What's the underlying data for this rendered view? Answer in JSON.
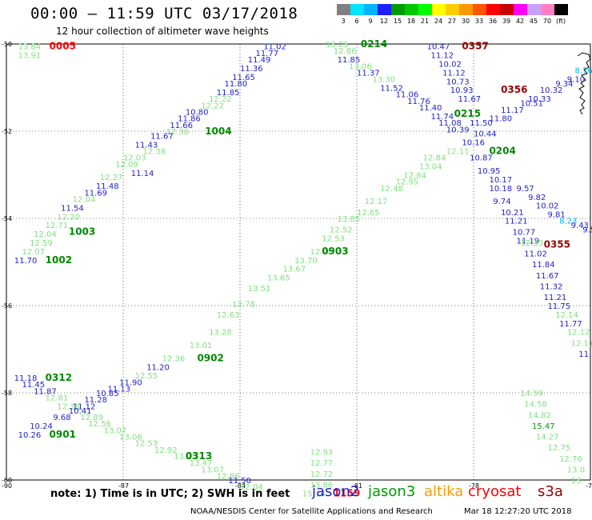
{
  "header": {
    "title": "00:00 – 11:59 UTC 03/17/2018",
    "subtitle": "12 hour collection of altimeter wave heights"
  },
  "colorbar": {
    "colors": [
      "#808080",
      "#00e5ff",
      "#00b4ff",
      "#1e1eff",
      "#009b00",
      "#00c800",
      "#00ff00",
      "#ffff00",
      "#ffcc00",
      "#ff9900",
      "#ff5500",
      "#ff0000",
      "#c80000",
      "#ff00ff",
      "#c8a0ff",
      "#ff80c0",
      "#000000"
    ],
    "labels": [
      "3",
      "6",
      "9",
      "12",
      "15",
      "18",
      "21",
      "24",
      "27",
      "30",
      "33",
      "36",
      "39",
      "42",
      "45",
      "70",
      "(ft)"
    ]
  },
  "map": {
    "lat_ticks": [
      "-50",
      "-52",
      "-54",
      "-56",
      "-58",
      "-60"
    ],
    "lon_ticks": [
      "-90",
      "-87",
      "-84",
      "-81",
      "-78",
      "-75"
    ]
  },
  "observations": [
    {
      "t": "13.84",
      "lon": -89.7,
      "lat": -50.05,
      "c": "#80e080"
    },
    {
      "t": "13.91",
      "lon": -89.7,
      "lat": -50.25,
      "c": "#80e080"
    },
    {
      "t": "0005",
      "lon": -88.9,
      "lat": -50.05,
      "c": "#ff0000"
    },
    {
      "t": "11.02",
      "lon": -83.4,
      "lat": -50.05,
      "c": "#1e1ecc"
    },
    {
      "t": "11.77",
      "lon": -83.6,
      "lat": -50.2,
      "c": "#1e1ecc"
    },
    {
      "t": "11.49",
      "lon": -83.8,
      "lat": -50.35,
      "c": "#1e1ecc"
    },
    {
      "t": "11.36",
      "lon": -84.0,
      "lat": -50.55,
      "c": "#1e1ecc"
    },
    {
      "t": "11.65",
      "lon": -84.2,
      "lat": -50.75,
      "c": "#1e1ecc"
    },
    {
      "t": "11.80",
      "lon": -84.4,
      "lat": -50.9,
      "c": "#1e1ecc"
    },
    {
      "t": "11.85",
      "lon": -84.6,
      "lat": -51.1,
      "c": "#1e1ecc"
    },
    {
      "t": "12.22",
      "lon": -84.8,
      "lat": -51.25,
      "c": "#80e080"
    },
    {
      "t": "12.22",
      "lon": -85.0,
      "lat": -51.4,
      "c": "#80e080"
    },
    {
      "t": "10.80",
      "lon": -85.4,
      "lat": -51.55,
      "c": "#1e1ecc"
    },
    {
      "t": "11.86",
      "lon": -85.6,
      "lat": -51.7,
      "c": "#1e1ecc"
    },
    {
      "t": "11.66",
      "lon": -85.8,
      "lat": -51.85,
      "c": "#1e1ecc"
    },
    {
      "t": "12.36",
      "lon": -85.9,
      "lat": -52.0,
      "c": "#80e080"
    },
    {
      "t": "1004",
      "lon": -84.9,
      "lat": -52.0,
      "c": "#008800"
    },
    {
      "t": "11.67",
      "lon": -86.3,
      "lat": -52.1,
      "c": "#1e1ecc"
    },
    {
      "t": "11.43",
      "lon": -86.7,
      "lat": -52.3,
      "c": "#1e1ecc"
    },
    {
      "t": "12.38",
      "lon": -86.5,
      "lat": -52.45,
      "c": "#80e080"
    },
    {
      "t": "12.03",
      "lon": -87.0,
      "lat": -52.6,
      "c": "#80e080"
    },
    {
      "t": "12.09",
      "lon": -87.2,
      "lat": -52.75,
      "c": "#80e080"
    },
    {
      "t": "11.14",
      "lon": -86.8,
      "lat": -52.95,
      "c": "#1e1ecc"
    },
    {
      "t": "12.27",
      "lon": -87.6,
      "lat": -53.05,
      "c": "#80e080"
    },
    {
      "t": "11.48",
      "lon": -87.7,
      "lat": -53.25,
      "c": "#1e1ecc"
    },
    {
      "t": "11.69",
      "lon": -88.0,
      "lat": -53.4,
      "c": "#1e1ecc"
    },
    {
      "t": "12.04",
      "lon": -88.3,
      "lat": -53.55,
      "c": "#80e080"
    },
    {
      "t": "11.54",
      "lon": -88.6,
      "lat": -53.75,
      "c": "#1e1ecc"
    },
    {
      "t": "12.20",
      "lon": -88.7,
      "lat": -53.95,
      "c": "#80e080"
    },
    {
      "t": "12.71",
      "lon": -89.0,
      "lat": -54.15,
      "c": "#80e080"
    },
    {
      "t": "1003",
      "lon": -88.4,
      "lat": -54.3,
      "c": "#008800"
    },
    {
      "t": "12.04",
      "lon": -89.3,
      "lat": -54.35,
      "c": "#80e080"
    },
    {
      "t": "12.59",
      "lon": -89.4,
      "lat": -54.55,
      "c": "#80e080"
    },
    {
      "t": "12.07",
      "lon": -89.6,
      "lat": -54.75,
      "c": "#80e080"
    },
    {
      "t": "11.70",
      "lon": -89.8,
      "lat": -54.95,
      "c": "#1e1ecc"
    },
    {
      "t": "1002",
      "lon": -89.0,
      "lat": -54.95,
      "c": "#008800"
    },
    {
      "t": "13.25",
      "lon": -81.8,
      "lat": -50.0,
      "c": "#80e080"
    },
    {
      "t": "0214",
      "lon": -80.9,
      "lat": -50.0,
      "c": "#008800"
    },
    {
      "t": "12.86",
      "lon": -81.6,
      "lat": -50.15,
      "c": "#80e080"
    },
    {
      "t": "11.85",
      "lon": -81.5,
      "lat": -50.35,
      "c": "#1e1ecc"
    },
    {
      "t": "13.06",
      "lon": -81.2,
      "lat": -50.5,
      "c": "#80e080"
    },
    {
      "t": "11.37",
      "lon": -81.0,
      "lat": -50.65,
      "c": "#1e1ecc"
    },
    {
      "t": "13.30",
      "lon": -80.6,
      "lat": -50.8,
      "c": "#80e080"
    },
    {
      "t": "11.52",
      "lon": -80.4,
      "lat": -51.0,
      "c": "#1e1ecc"
    },
    {
      "t": "11.06",
      "lon": -80.0,
      "lat": -51.15,
      "c": "#1e1ecc"
    },
    {
      "t": "11.76",
      "lon": -79.7,
      "lat": -51.3,
      "c": "#1e1ecc"
    },
    {
      "t": "11.40",
      "lon": -79.4,
      "lat": -51.45,
      "c": "#1e1ecc"
    },
    {
      "t": "11.74",
      "lon": -79.1,
      "lat": -51.65,
      "c": "#1e1ecc"
    },
    {
      "t": "11.08",
      "lon": -78.9,
      "lat": -51.8,
      "c": "#1e1ecc"
    },
    {
      "t": "10.39",
      "lon": -78.7,
      "lat": -51.95,
      "c": "#1e1ecc"
    },
    {
      "t": "10.47",
      "lon": -79.2,
      "lat": -50.05,
      "c": "#1e1ecc"
    },
    {
      "t": "0357",
      "lon": -78.3,
      "lat": -50.05,
      "c": "#990000"
    },
    {
      "t": "11.12",
      "lon": -79.1,
      "lat": -50.25,
      "c": "#1e1ecc"
    },
    {
      "t": "10.02",
      "lon": -78.9,
      "lat": -50.45,
      "c": "#1e1ecc"
    },
    {
      "t": "11.12",
      "lon": -78.8,
      "lat": -50.65,
      "c": "#1e1ecc"
    },
    {
      "t": "10.73",
      "lon": -78.7,
      "lat": -50.85,
      "c": "#1e1ecc"
    },
    {
      "t": "10.93",
      "lon": -78.6,
      "lat": -51.05,
      "c": "#1e1ecc"
    },
    {
      "t": "0356",
      "lon": -77.3,
      "lat": -51.05,
      "c": "#990000"
    },
    {
      "t": "11.67",
      "lon": -78.4,
      "lat": -51.25,
      "c": "#1e1ecc"
    },
    {
      "t": "10.51",
      "lon": -76.8,
      "lat": -51.35,
      "c": "#1e1ecc"
    },
    {
      "t": "11.17",
      "lon": -77.3,
      "lat": -51.5,
      "c": "#1e1ecc"
    },
    {
      "t": "0215",
      "lon": -78.5,
      "lat": -51.6,
      "c": "#008800"
    },
    {
      "t": "11.50",
      "lon": -78.1,
      "lat": -51.8,
      "c": "#1e1ecc"
    },
    {
      "t": "10.44",
      "lon": -78.0,
      "lat": -52.05,
      "c": "#1e1ecc"
    },
    {
      "t": "10.16",
      "lon": -78.3,
      "lat": -52.25,
      "c": "#1e1ecc"
    },
    {
      "t": "0204",
      "lon": -77.6,
      "lat": -52.45,
      "c": "#008800"
    },
    {
      "t": "12.11",
      "lon": -78.7,
      "lat": -52.45,
      "c": "#80e080"
    },
    {
      "t": "10.87",
      "lon": -78.1,
      "lat": -52.6,
      "c": "#1e1ecc"
    },
    {
      "t": "13.04",
      "lon": -79.4,
      "lat": -52.8,
      "c": "#80e080"
    },
    {
      "t": "10.95",
      "lon": -77.9,
      "lat": -52.9,
      "c": "#1e1ecc"
    },
    {
      "t": "10.17",
      "lon": -77.6,
      "lat": -53.1,
      "c": "#1e1ecc"
    },
    {
      "t": "10.18",
      "lon": -77.6,
      "lat": -53.3,
      "c": "#1e1ecc"
    },
    {
      "t": "9.57",
      "lon": -76.9,
      "lat": -53.3,
      "c": "#1e1ecc"
    },
    {
      "t": "9.82",
      "lon": -76.6,
      "lat": -53.5,
      "c": "#1e1ecc"
    },
    {
      "t": "9.74",
      "lon": -77.5,
      "lat": -53.6,
      "c": "#1e1ecc"
    },
    {
      "t": "10.02",
      "lon": -76.4,
      "lat": -53.7,
      "c": "#1e1ecc"
    },
    {
      "t": "10.21",
      "lon": -77.3,
      "lat": -53.85,
      "c": "#1e1ecc"
    },
    {
      "t": "9.81",
      "lon": -76.1,
      "lat": -53.9,
      "c": "#1e1ecc"
    },
    {
      "t": "8.23",
      "lon": -75.8,
      "lat": -54.05,
      "c": "#00b4ff"
    },
    {
      "t": "11.21",
      "lon": -77.2,
      "lat": -54.05,
      "c": "#1e1ecc"
    },
    {
      "t": "9.43",
      "lon": -75.5,
      "lat": -54.15,
      "c": "#1e1ecc"
    },
    {
      "t": "9.59",
      "lon": -75.2,
      "lat": -54.25,
      "c": "#1e1ecc"
    },
    {
      "t": "10.77",
      "lon": -77.0,
      "lat": -54.3,
      "c": "#1e1ecc"
    },
    {
      "t": "11.19",
      "lon": -76.9,
      "lat": -54.5,
      "c": "#1e1ecc"
    },
    {
      "t": "0355",
      "lon": -76.2,
      "lat": -54.6,
      "c": "#990000"
    },
    {
      "t": "12.33",
      "lon": -76.8,
      "lat": -54.55,
      "c": "#80e080"
    },
    {
      "t": "11.02",
      "lon": -76.7,
      "lat": -54.8,
      "c": "#1e1ecc"
    },
    {
      "t": "11.84",
      "lon": -76.5,
      "lat": -55.05,
      "c": "#1e1ecc"
    },
    {
      "t": "11.67",
      "lon": -76.4,
      "lat": -55.3,
      "c": "#1e1ecc"
    },
    {
      "t": "11.32",
      "lon": -76.3,
      "lat": -55.55,
      "c": "#1e1ecc"
    },
    {
      "t": "11.21",
      "lon": -76.2,
      "lat": -55.8,
      "c": "#1e1ecc"
    },
    {
      "t": "11.75",
      "lon": -76.1,
      "lat": -56.0,
      "c": "#1e1ecc"
    },
    {
      "t": "12.14",
      "lon": -75.9,
      "lat": -56.2,
      "c": "#80e080"
    },
    {
      "t": "11.77",
      "lon": -75.8,
      "lat": -56.4,
      "c": "#1e1ecc"
    },
    {
      "t": "12.12",
      "lon": -75.6,
      "lat": -56.6,
      "c": "#80e080"
    },
    {
      "t": "12.11",
      "lon": -75.5,
      "lat": -56.85,
      "c": "#80e080"
    },
    {
      "t": "11.18",
      "lon": -75.3,
      "lat": -57.1,
      "c": "#1e1ecc"
    },
    {
      "t": "9.10",
      "lon": -75.6,
      "lat": -50.8,
      "c": "#1e1ecc"
    },
    {
      "t": "9.34",
      "lon": -75.9,
      "lat": -50.9,
      "c": "#1e1ecc"
    },
    {
      "t": "8.76",
      "lon": -75.4,
      "lat": -50.6,
      "c": "#00b4ff"
    },
    {
      "t": "10.32",
      "lon": -76.3,
      "lat": -51.05,
      "c": "#1e1ecc"
    },
    {
      "t": "10.33",
      "lon": -76.6,
      "lat": -51.25,
      "c": "#1e1ecc"
    },
    {
      "t": "11.80",
      "lon": -77.6,
      "lat": -51.7,
      "c": "#1e1ecc"
    },
    {
      "t": "12.84",
      "lon": -79.3,
      "lat": -52.6,
      "c": "#80e080"
    },
    {
      "t": "12.84",
      "lon": -79.8,
      "lat": -53.0,
      "c": "#80e080"
    },
    {
      "t": "12.48",
      "lon": -80.4,
      "lat": -53.3,
      "c": "#80e080"
    },
    {
      "t": "12.95",
      "lon": -80.0,
      "lat": -53.15,
      "c": "#80e080"
    },
    {
      "t": "12.17",
      "lon": -80.8,
      "lat": -53.6,
      "c": "#80e080"
    },
    {
      "t": "12.65",
      "lon": -81.0,
      "lat": -53.85,
      "c": "#80e080"
    },
    {
      "t": "13.85",
      "lon": -81.5,
      "lat": -54.0,
      "c": "#80e080"
    },
    {
      "t": "12.52",
      "lon": -81.7,
      "lat": -54.25,
      "c": "#80e080"
    },
    {
      "t": "12.53",
      "lon": -81.9,
      "lat": -54.45,
      "c": "#80e080"
    },
    {
      "t": "12.48",
      "lon": -82.2,
      "lat": -54.75,
      "c": "#80e080"
    },
    {
      "t": "0903",
      "lon": -81.9,
      "lat": -54.75,
      "c": "#008800"
    },
    {
      "t": "13.70",
      "lon": -82.6,
      "lat": -54.95,
      "c": "#80e080"
    },
    {
      "t": "13.67",
      "lon": -82.9,
      "lat": -55.15,
      "c": "#80e080"
    },
    {
      "t": "13.65",
      "lon": -83.3,
      "lat": -55.35,
      "c": "#80e080"
    },
    {
      "t": "13.51",
      "lon": -83.8,
      "lat": -55.6,
      "c": "#80e080"
    },
    {
      "t": "12.78",
      "lon": -84.2,
      "lat": -55.95,
      "c": "#80e080"
    },
    {
      "t": "12.63",
      "lon": -84.6,
      "lat": -56.2,
      "c": "#80e080"
    },
    {
      "t": "13.28",
      "lon": -84.8,
      "lat": -56.6,
      "c": "#80e080"
    },
    {
      "t": "13.01",
      "lon": -85.3,
      "lat": -56.9,
      "c": "#80e080"
    },
    {
      "t": "0902",
      "lon": -85.1,
      "lat": -57.2,
      "c": "#008800"
    },
    {
      "t": "12.36",
      "lon": -86.0,
      "lat": -57.2,
      "c": "#80e080"
    },
    {
      "t": "11.20",
      "lon": -86.4,
      "lat": -57.4,
      "c": "#1e1ecc"
    },
    {
      "t": "12.55",
      "lon": -86.7,
      "lat": -57.6,
      "c": "#80e080"
    },
    {
      "t": "11.90",
      "lon": -87.1,
      "lat": -57.75,
      "c": "#1e1ecc"
    },
    {
      "t": "11.13",
      "lon": -87.4,
      "lat": -57.9,
      "c": "#1e1ecc"
    },
    {
      "t": "10.85",
      "lon": -87.7,
      "lat": -58.0,
      "c": "#1e1ecc"
    },
    {
      "t": "11.28",
      "lon": -88.0,
      "lat": -58.15,
      "c": "#1e1ecc"
    },
    {
      "t": "11.12",
      "lon": -88.3,
      "lat": -58.3,
      "c": "#1e1ecc"
    },
    {
      "t": "11.18",
      "lon": -89.8,
      "lat": -57.65,
      "c": "#1e1ecc"
    },
    {
      "t": "0312",
      "lon": -89.0,
      "lat": -57.65,
      "c": "#008800"
    },
    {
      "t": "11.45",
      "lon": -89.6,
      "lat": -57.8,
      "c": "#1e1ecc"
    },
    {
      "t": "11.87",
      "lon": -89.3,
      "lat": -57.95,
      "c": "#1e1ecc"
    },
    {
      "t": "12.81",
      "lon": -89.0,
      "lat": -58.1,
      "c": "#80e080"
    },
    {
      "t": "12.36",
      "lon": -88.7,
      "lat": -58.3,
      "c": "#80e080"
    },
    {
      "t": "10.41",
      "lon": -88.4,
      "lat": -58.4,
      "c": "#1e1ecc"
    },
    {
      "t": "9.68",
      "lon": -88.8,
      "lat": -58.55,
      "c": "#1e1ecc"
    },
    {
      "t": "12.89",
      "lon": -88.1,
      "lat": -58.55,
      "c": "#80e080"
    },
    {
      "t": "12.56",
      "lon": -87.9,
      "lat": -58.7,
      "c": "#80e080"
    },
    {
      "t": "10.24",
      "lon": -89.4,
      "lat": -58.75,
      "c": "#1e1ecc"
    },
    {
      "t": "13.07",
      "lon": -87.5,
      "lat": -58.85,
      "c": "#80e080"
    },
    {
      "t": "10.26",
      "lon": -89.7,
      "lat": -58.95,
      "c": "#1e1ecc"
    },
    {
      "t": "0901",
      "lon": -88.9,
      "lat": -58.95,
      "c": "#008800"
    },
    {
      "t": "13.06",
      "lon": -87.1,
      "lat": -59.0,
      "c": "#80e080"
    },
    {
      "t": "12.53",
      "lon": -86.7,
      "lat": -59.15,
      "c": "#80e080"
    },
    {
      "t": "12.92",
      "lon": -86.2,
      "lat": -59.3,
      "c": "#80e080"
    },
    {
      "t": "13.25",
      "lon": -85.7,
      "lat": -59.45,
      "c": "#80e080"
    },
    {
      "t": "0313",
      "lon": -85.4,
      "lat": -59.45,
      "c": "#008800"
    },
    {
      "t": "13.47",
      "lon": -85.3,
      "lat": -59.6,
      "c": "#80e080"
    },
    {
      "t": "13.07",
      "lon": -85.0,
      "lat": -59.75,
      "c": "#80e080"
    },
    {
      "t": "12.86",
      "lon": -84.6,
      "lat": -59.9,
      "c": "#80e080"
    },
    {
      "t": "11.50",
      "lon": -84.3,
      "lat": -60.0,
      "c": "#1e1ecc"
    },
    {
      "t": "12.04",
      "lon": -84.0,
      "lat": -60.15,
      "c": "#80e080"
    },
    {
      "t": "12.93",
      "lon": -82.2,
      "lat": -59.35,
      "c": "#80e080"
    },
    {
      "t": "12.77",
      "lon": -82.2,
      "lat": -59.6,
      "c": "#80e080"
    },
    {
      "t": "12.72",
      "lon": -82.2,
      "lat": -59.85,
      "c": "#80e080"
    },
    {
      "t": "13.86",
      "lon": -82.2,
      "lat": -60.1,
      "c": "#80e080"
    },
    {
      "t": "15.16",
      "lon": -82.4,
      "lat": -60.3,
      "c": "#80e080"
    },
    {
      "t": "1159",
      "lon": -81.6,
      "lat": -60.3,
      "c": "#ff0000"
    },
    {
      "t": "14.59",
      "lon": -76.8,
      "lat": -58.0,
      "c": "#80e080"
    },
    {
      "t": "14.58",
      "lon": -76.7,
      "lat": -58.25,
      "c": "#80e080"
    },
    {
      "t": "14.82",
      "lon": -76.6,
      "lat": -58.5,
      "c": "#80e080"
    },
    {
      "t": "15.47",
      "lon": -76.5,
      "lat": -58.75,
      "c": "#009b00"
    },
    {
      "t": "14.27",
      "lon": -76.4,
      "lat": -59.0,
      "c": "#80e080"
    },
    {
      "t": "12.75",
      "lon": -76.1,
      "lat": -59.25,
      "c": "#80e080"
    },
    {
      "t": "12.76",
      "lon": -75.8,
      "lat": -59.5,
      "c": "#80e080"
    },
    {
      "t": "13.0",
      "lon": -75.6,
      "lat": -59.75,
      "c": "#80e080"
    },
    {
      "t": "13.",
      "lon": -75.5,
      "lat": -60.0,
      "c": "#80e080"
    }
  ],
  "footer": {
    "note": "note: 1) Time is in UTC; 2) SWH is in feet",
    "satellites": [
      {
        "name": "jason2",
        "color": "#1e1ecc"
      },
      {
        "name": "jason3",
        "color": "#009b00"
      },
      {
        "name": "altika",
        "color": "#ff9900"
      },
      {
        "name": "cryosat",
        "color": "#ff0000"
      },
      {
        "name": "s3a",
        "color": "#990000"
      }
    ],
    "credit": "NOAA/NESDIS Center for Satellite Applications and Research",
    "stamp": "Mar 18 12:27:20 UTC 2018"
  }
}
